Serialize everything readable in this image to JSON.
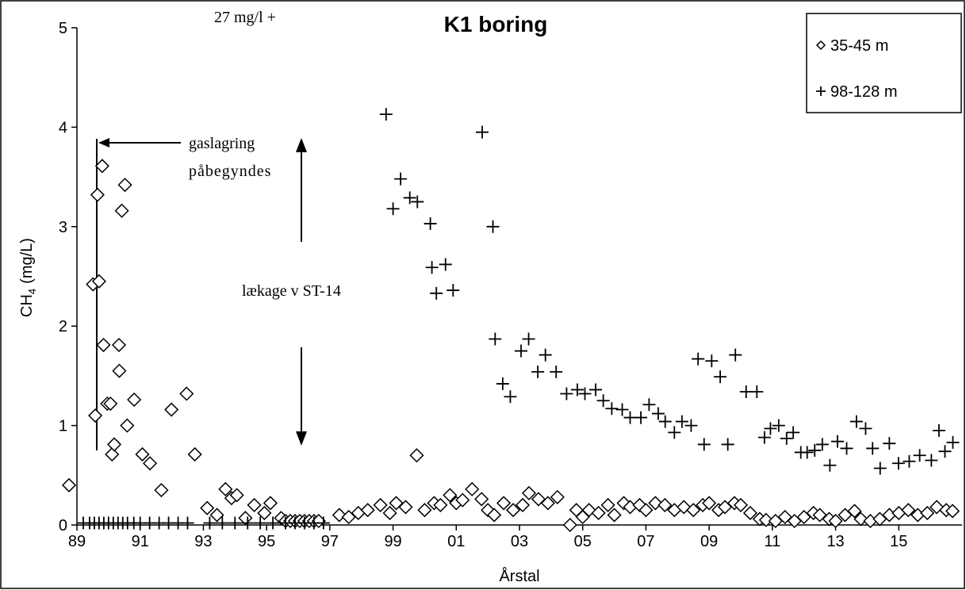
{
  "chart_data": {
    "type": "scatter",
    "title": "K1 boring",
    "x_label": "Årstal",
    "y_label": [
      "CH",
      "4",
      "(mg/L)"
    ],
    "annotations": {
      "top_note": "27 mg/l +",
      "start_1": "gaslagring",
      "start_2": "påbegyndes",
      "leak": "lækage v ST-14"
    },
    "xlim": [
      1989,
      2017
    ],
    "ylim": [
      0,
      5
    ],
    "xticks": [
      {
        "value": 1989,
        "label": "89"
      },
      {
        "value": 1991,
        "label": "91"
      },
      {
        "value": 1993,
        "label": "93"
      },
      {
        "value": 1995,
        "label": "95"
      },
      {
        "value": 1997,
        "label": "97"
      },
      {
        "value": 1999,
        "label": "99"
      },
      {
        "value": 2001,
        "label": "01"
      },
      {
        "value": 2003,
        "label": "03"
      },
      {
        "value": 2005,
        "label": "05"
      },
      {
        "value": 2007,
        "label": "07"
      },
      {
        "value": 2009,
        "label": "09"
      },
      {
        "value": 2011,
        "label": "11"
      },
      {
        "value": 2013,
        "label": "13"
      },
      {
        "value": 2015,
        "label": "15"
      }
    ],
    "yticks": [
      0,
      1,
      2,
      3,
      4,
      5
    ],
    "grid": false,
    "legend": "upper right",
    "series": [
      {
        "name": "35-45 m",
        "marker": "diamond",
        "color": "#000000",
        "x": [
          1988.75,
          1989.51,
          1989.58,
          1989.65,
          1989.7,
          1989.8,
          1989.84,
          1989.96,
          1990.06,
          1990.11,
          1990.18,
          1990.33,
          1990.34,
          1990.42,
          1990.52,
          1990.59,
          1990.81,
          1991.07,
          1991.31,
          1991.67,
          1991.99,
          1992.47,
          1992.73,
          1993.12,
          1993.43,
          1993.7,
          1993.89,
          1994.06,
          1994.33,
          1994.61,
          1994.93,
          1995.12,
          1995.46,
          1995.6,
          1995.75,
          1995.9,
          1996.05,
          1996.2,
          1996.35,
          1996.5,
          1996.65,
          1997.3,
          1997.6,
          1997.9,
          1998.2,
          1998.6,
          1998.9,
          1999.1,
          1999.4,
          1999.75,
          2000.0,
          2000.3,
          2000.5,
          2000.8,
          2001.0,
          2001.2,
          2001.5,
          2001.8,
          2002.0,
          2002.2,
          2002.5,
          2002.8,
          2003.1,
          2003.3,
          2003.6,
          2003.9,
          2004.2,
          2004.6,
          2004.8,
          2005.0,
          2005.2,
          2005.5,
          2005.8,
          2006.0,
          2006.3,
          2006.5,
          2006.8,
          2007.0,
          2007.3,
          2007.6,
          2007.9,
          2008.2,
          2008.5,
          2008.8,
          2009.0,
          2009.3,
          2009.5,
          2009.8,
          2010.0,
          2010.3,
          2010.6,
          2010.8,
          2011.1,
          2011.4,
          2011.7,
          2012.0,
          2012.3,
          2012.5,
          2012.8,
          2013.0,
          2013.3,
          2013.6,
          2013.8,
          2014.1,
          2014.4,
          2014.7,
          2015.0,
          2015.3,
          2015.6,
          2015.9,
          2016.2,
          2016.5,
          2016.7
        ],
        "values": [
          0.4,
          2.42,
          1.1,
          3.32,
          2.45,
          3.61,
          1.81,
          1.22,
          1.22,
          0.71,
          0.81,
          1.81,
          1.55,
          3.16,
          3.42,
          1.0,
          1.26,
          0.71,
          0.62,
          0.35,
          1.16,
          1.32,
          0.71,
          0.17,
          0.1,
          0.36,
          0.27,
          0.3,
          0.07,
          0.2,
          0.12,
          0.22,
          0.07,
          0.04,
          0.04,
          0.04,
          0.04,
          0.04,
          0.04,
          0.04,
          0.04,
          0.1,
          0.08,
          0.12,
          0.15,
          0.2,
          0.12,
          0.22,
          0.18,
          0.7,
          0.15,
          0.22,
          0.2,
          0.3,
          0.22,
          0.25,
          0.36,
          0.26,
          0.15,
          0.1,
          0.22,
          0.15,
          0.2,
          0.32,
          0.26,
          0.22,
          0.28,
          0.0,
          0.15,
          0.08,
          0.15,
          0.12,
          0.2,
          0.1,
          0.22,
          0.18,
          0.2,
          0.15,
          0.22,
          0.2,
          0.15,
          0.18,
          0.15,
          0.2,
          0.22,
          0.15,
          0.18,
          0.22,
          0.2,
          0.12,
          0.06,
          0.05,
          0.04,
          0.08,
          0.04,
          0.08,
          0.12,
          0.1,
          0.06,
          0.04,
          0.1,
          0.14,
          0.06,
          0.04,
          0.06,
          0.1,
          0.12,
          0.15,
          0.1,
          0.12,
          0.18,
          0.15,
          0.14
        ]
      },
      {
        "name": "98-128 m",
        "marker": "plus",
        "color": "#000000",
        "x": [
          1989.2,
          1989.4,
          1989.55,
          1989.7,
          1989.85,
          1990.0,
          1990.15,
          1990.3,
          1990.45,
          1990.6,
          1990.8,
          1991.0,
          1991.3,
          1991.6,
          1991.9,
          1992.2,
          1992.5,
          1993.2,
          1993.6,
          1994.0,
          1994.4,
          1994.8,
          1995.2,
          1995.6,
          1995.9,
          1996.2,
          1996.5,
          1996.8,
          1998.78,
          1999.0,
          1999.24,
          1999.53,
          1999.77,
          2000.18,
          2000.23,
          2000.37,
          2000.66,
          2000.9,
          2001.82,
          2002.16,
          2002.23,
          2002.47,
          2002.71,
          2003.05,
          2003.29,
          2003.58,
          2003.82,
          2004.16,
          2004.49,
          2004.83,
          2005.07,
          2005.41,
          2005.65,
          2005.92,
          2006.25,
          2006.5,
          2006.84,
          2007.1,
          2007.39,
          2007.61,
          2007.9,
          2008.14,
          2008.43,
          2008.65,
          2008.84,
          2009.08,
          2009.35,
          2009.59,
          2009.83,
          2010.17,
          2010.51,
          2010.75,
          2010.94,
          2011.2,
          2011.45,
          2011.66,
          2011.9,
          2012.1,
          2012.34,
          2012.58,
          2012.82,
          2013.06,
          2013.35,
          2013.66,
          2013.95,
          2014.17,
          2014.41,
          2014.7,
          2014.99,
          2015.33,
          2015.66,
          2016.03,
          2016.27,
          2016.46,
          2016.71
        ],
        "values": [
          0.02,
          0.02,
          0.02,
          0.02,
          0.02,
          0.02,
          0.02,
          0.02,
          0.02,
          0.02,
          0.02,
          0.02,
          0.02,
          0.02,
          0.02,
          0.02,
          0.02,
          0.02,
          0.02,
          0.02,
          0.02,
          0.02,
          0.02,
          0.02,
          0.02,
          0.02,
          0.02,
          0.02,
          4.13,
          3.18,
          3.48,
          3.29,
          3.25,
          3.03,
          2.59,
          2.33,
          2.62,
          2.36,
          3.95,
          3.0,
          1.87,
          1.42,
          1.29,
          1.75,
          1.87,
          1.54,
          1.71,
          1.54,
          1.32,
          1.36,
          1.32,
          1.36,
          1.25,
          1.17,
          1.16,
          1.08,
          1.08,
          1.21,
          1.12,
          1.04,
          0.93,
          1.04,
          1.0,
          1.67,
          0.81,
          1.65,
          1.49,
          0.81,
          1.71,
          1.34,
          1.34,
          0.88,
          0.97,
          1.0,
          0.87,
          0.93,
          0.73,
          0.73,
          0.75,
          0.81,
          0.6,
          0.84,
          0.77,
          1.04,
          0.97,
          0.77,
          0.57,
          0.82,
          0.62,
          0.64,
          0.7,
          0.65,
          0.95,
          0.74,
          0.83
        ]
      }
    ]
  }
}
